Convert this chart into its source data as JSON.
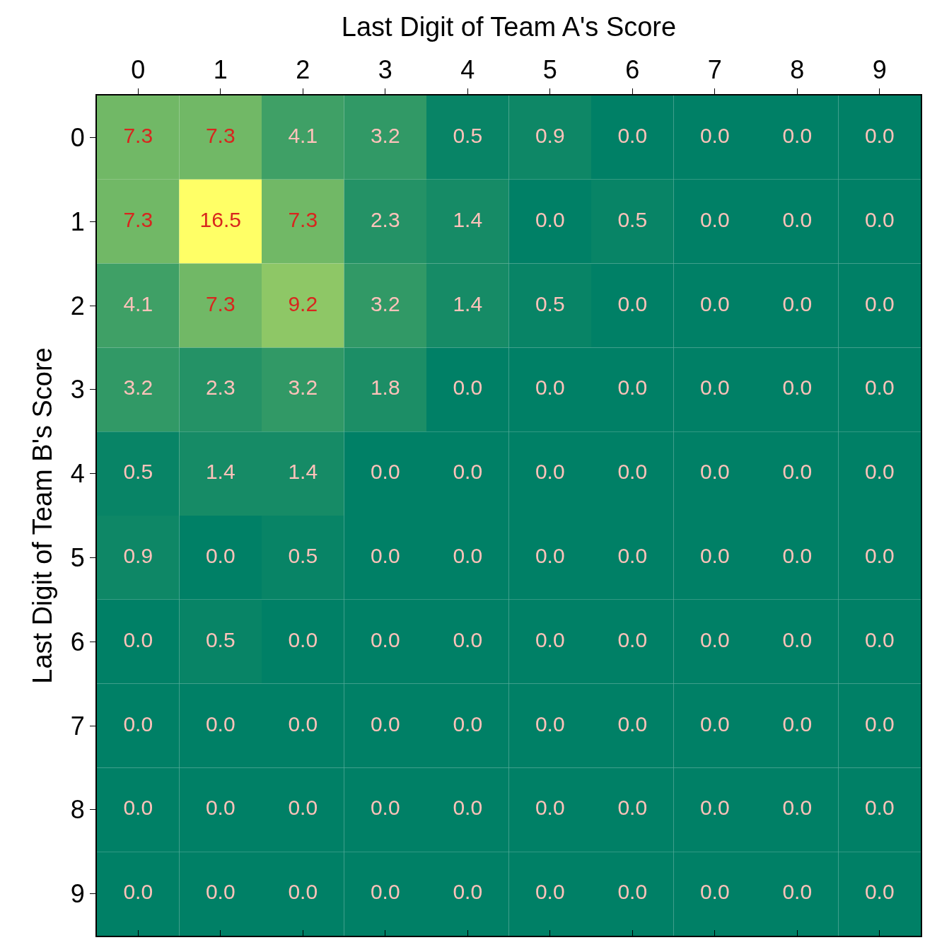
{
  "chart_data": {
    "type": "heatmap",
    "xlabel": "Last Digit of Team A's Score",
    "ylabel": "Last Digit of Team B's Score",
    "categories": [
      "0",
      "1",
      "2",
      "3",
      "4",
      "5",
      "6",
      "7",
      "8",
      "9"
    ],
    "y_categories": [
      "0",
      "1",
      "2",
      "3",
      "4",
      "5",
      "6",
      "7",
      "8",
      "9"
    ],
    "cells": [
      [
        7.3,
        7.3,
        4.1,
        3.2,
        0.5,
        0.9,
        0.0,
        0.0,
        0.0,
        0.0
      ],
      [
        7.3,
        16.5,
        7.3,
        2.3,
        1.4,
        0.0,
        0.5,
        0.0,
        0.0,
        0.0
      ],
      [
        4.1,
        7.3,
        9.2,
        3.2,
        1.4,
        0.5,
        0.0,
        0.0,
        0.0,
        0.0
      ],
      [
        3.2,
        2.3,
        3.2,
        1.8,
        0.0,
        0.0,
        0.0,
        0.0,
        0.0,
        0.0
      ],
      [
        0.5,
        1.4,
        1.4,
        0.0,
        0.0,
        0.0,
        0.0,
        0.0,
        0.0,
        0.0
      ],
      [
        0.9,
        0.0,
        0.5,
        0.0,
        0.0,
        0.0,
        0.0,
        0.0,
        0.0,
        0.0
      ],
      [
        0.0,
        0.5,
        0.0,
        0.0,
        0.0,
        0.0,
        0.0,
        0.0,
        0.0,
        0.0
      ],
      [
        0.0,
        0.0,
        0.0,
        0.0,
        0.0,
        0.0,
        0.0,
        0.0,
        0.0,
        0.0
      ],
      [
        0.0,
        0.0,
        0.0,
        0.0,
        0.0,
        0.0,
        0.0,
        0.0,
        0.0,
        0.0
      ],
      [
        0.0,
        0.0,
        0.0,
        0.0,
        0.0,
        0.0,
        0.0,
        0.0,
        0.0,
        0.0
      ]
    ],
    "cell_labels": [
      [
        "7.3",
        "7.3",
        "4.1",
        "3.2",
        "0.5",
        "0.9",
        "0.0",
        "0.0",
        "0.0",
        "0.0"
      ],
      [
        "7.3",
        "16.5",
        "7.3",
        "2.3",
        "1.4",
        "0.0",
        "0.5",
        "0.0",
        "0.0",
        "0.0"
      ],
      [
        "4.1",
        "7.3",
        "9.2",
        "3.2",
        "1.4",
        "0.5",
        "0.0",
        "0.0",
        "0.0",
        "0.0"
      ],
      [
        "3.2",
        "2.3",
        "3.2",
        "1.8",
        "0.0",
        "0.0",
        "0.0",
        "0.0",
        "0.0",
        "0.0"
      ],
      [
        "0.5",
        "1.4",
        "1.4",
        "0.0",
        "0.0",
        "0.0",
        "0.0",
        "0.0",
        "0.0",
        "0.0"
      ],
      [
        "0.9",
        "0.0",
        "0.5",
        "0.0",
        "0.0",
        "0.0",
        "0.0",
        "0.0",
        "0.0",
        "0.0"
      ],
      [
        "0.0",
        "0.5",
        "0.0",
        "0.0",
        "0.0",
        "0.0",
        "0.0",
        "0.0",
        "0.0",
        "0.0"
      ],
      [
        "0.0",
        "0.0",
        "0.0",
        "0.0",
        "0.0",
        "0.0",
        "0.0",
        "0.0",
        "0.0",
        "0.0"
      ],
      [
        "0.0",
        "0.0",
        "0.0",
        "0.0",
        "0.0",
        "0.0",
        "0.0",
        "0.0",
        "0.0",
        "0.0"
      ],
      [
        "0.0",
        "0.0",
        "0.0",
        "0.0",
        "0.0",
        "0.0",
        "0.0",
        "0.0",
        "0.0",
        "0.0"
      ]
    ]
  }
}
